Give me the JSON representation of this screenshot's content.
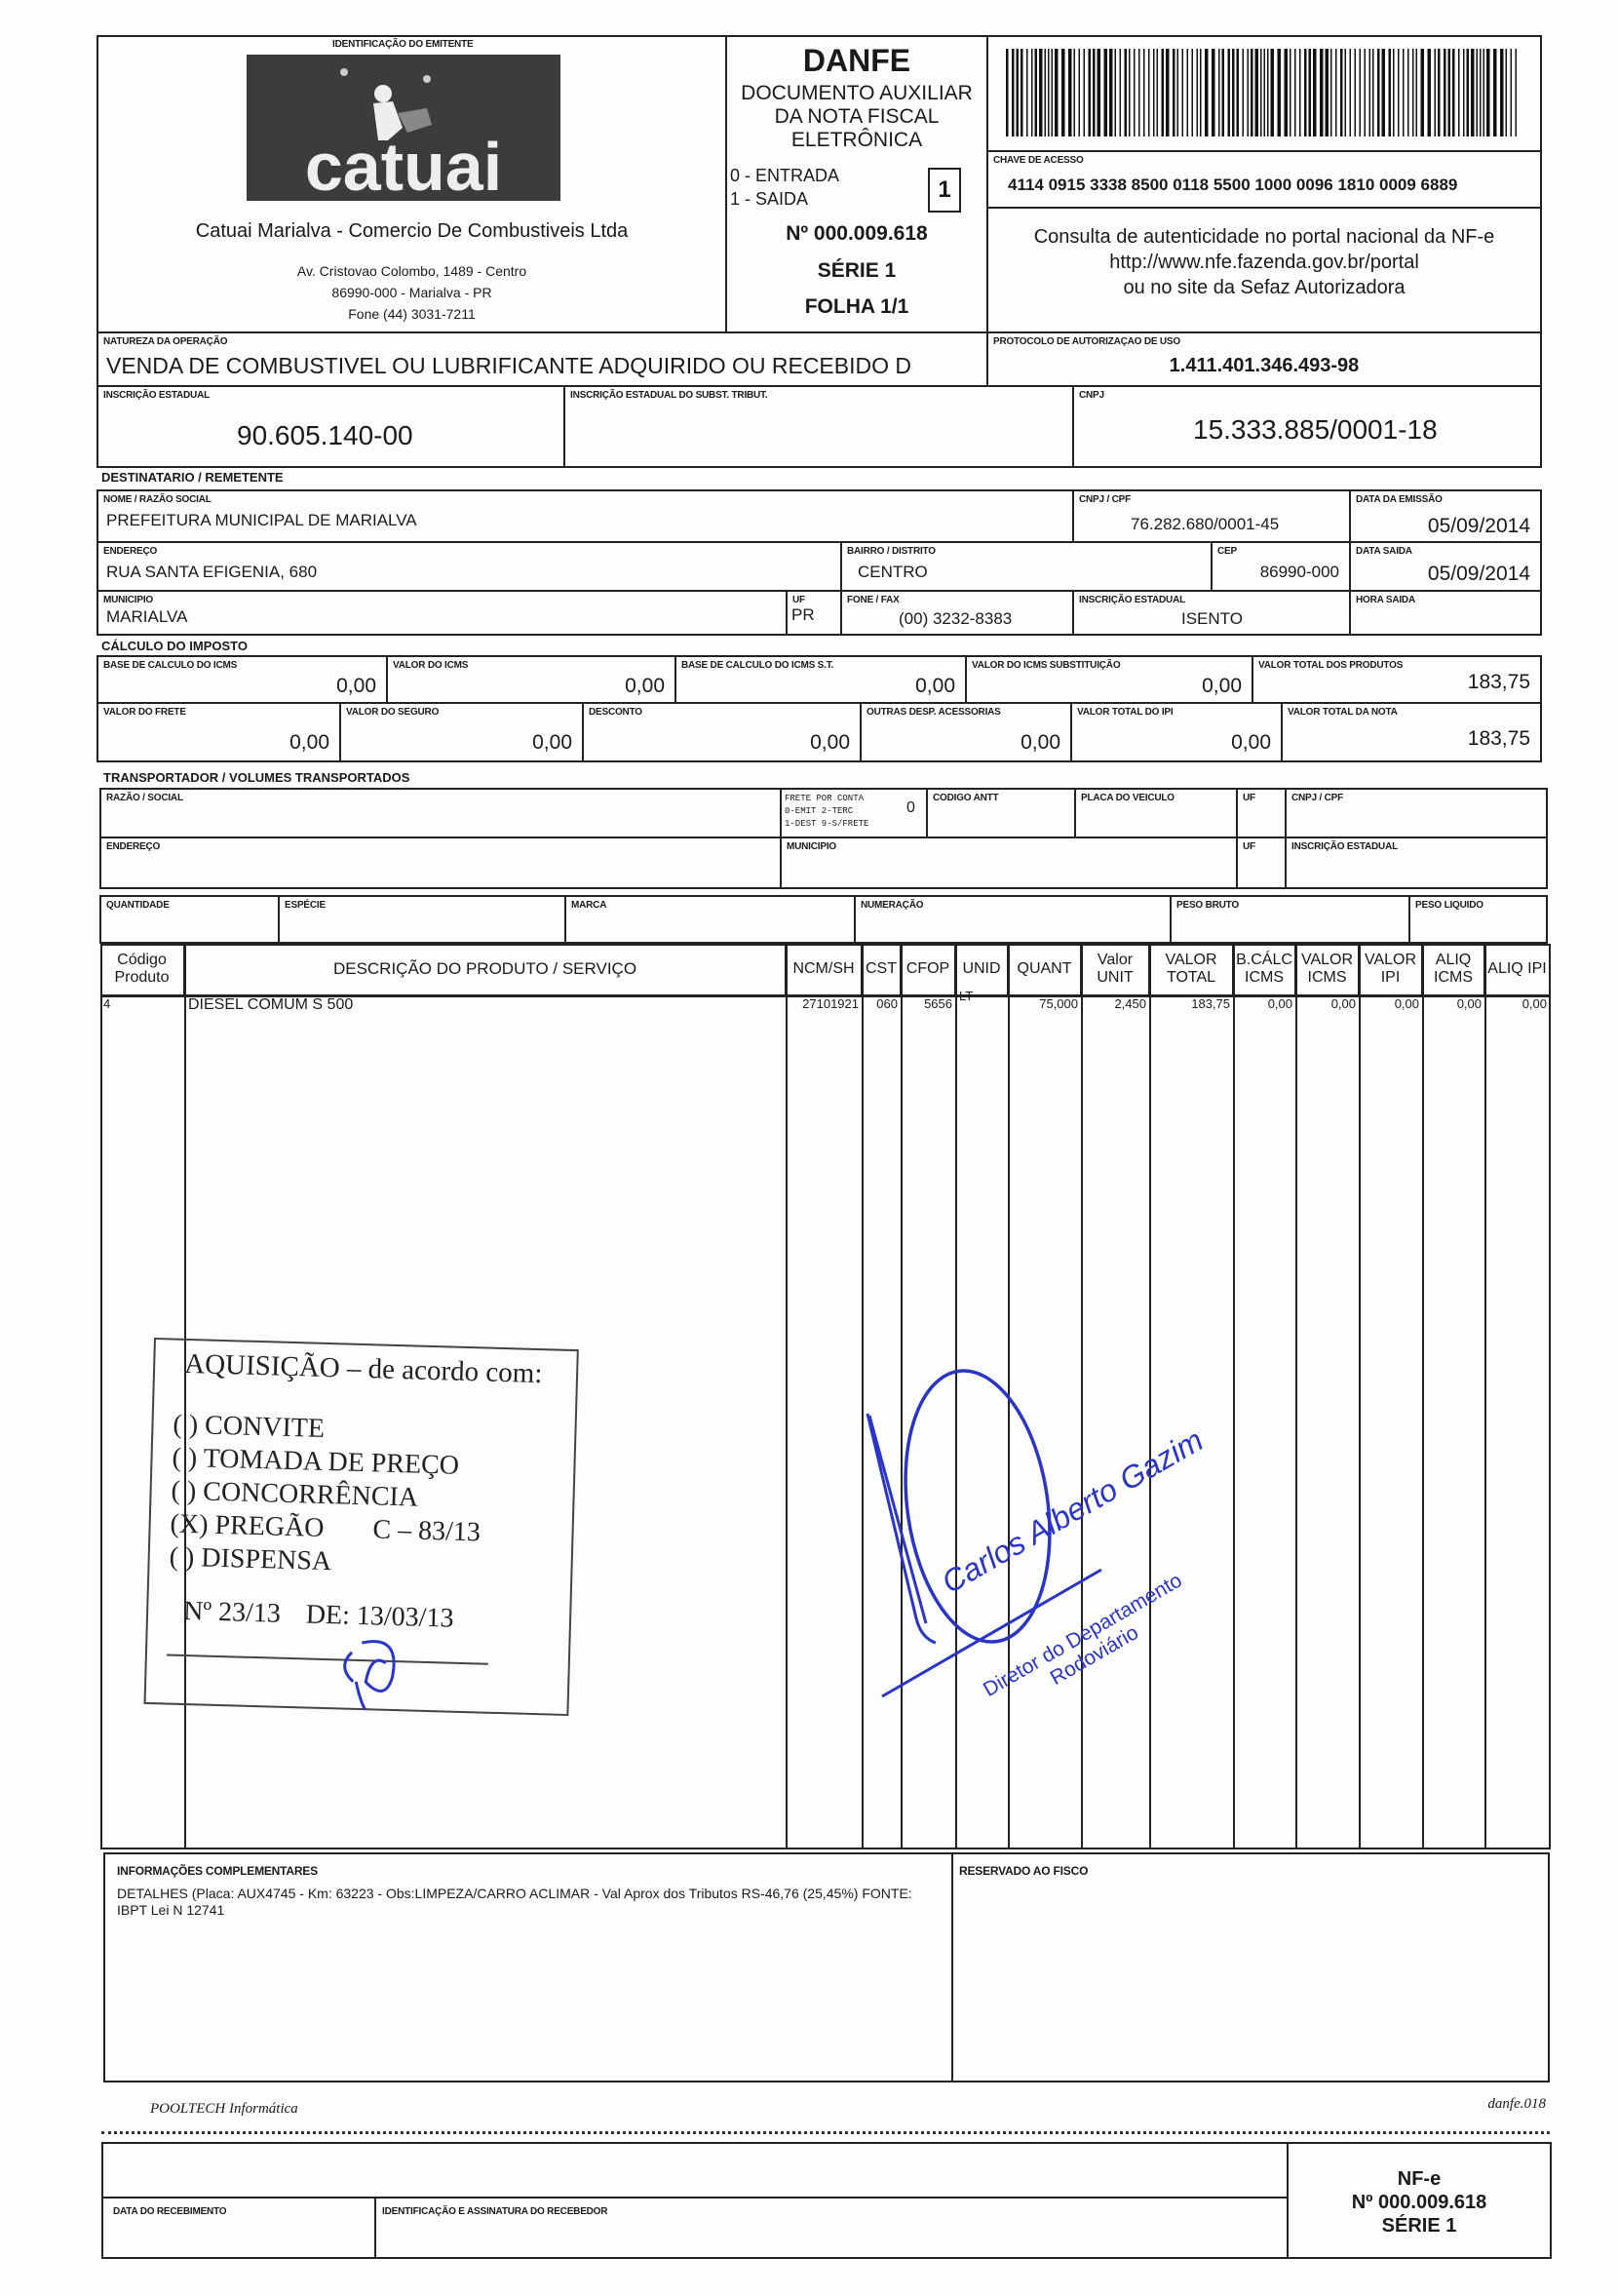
{
  "emitente": {
    "section_label": "IDENTIFICAÇÃO DO EMITENTE",
    "logo_text": "catuai",
    "name": "Catuai Marialva - Comercio De Combustiveis Ltda",
    "address_line1": "Av. Cristovao Colombo, 1489 - Centro",
    "address_line2": "86990-000 - Marialva - PR",
    "phone": "Fone (44) 3031-7211"
  },
  "danfe": {
    "title": "DANFE",
    "subtitle_1": "DOCUMENTO AUXILIAR",
    "subtitle_2": "DA NOTA FISCAL",
    "subtitle_3": "ELETRÔNICA",
    "entrada": "0 - ENTRADA",
    "saida": "1 - SAIDA",
    "tipo": "1",
    "numero": "Nº 000.009.618",
    "serie": "SÉRIE 1",
    "folha": "FOLHA 1/1"
  },
  "chave": {
    "label": "CHAVE DE ACESSO",
    "value": "4114 0915 3338 8500 0118 5500 1000 0096 1810 0009 6889",
    "consulta_1": "Consulta de autenticidade no portal nacional da NF-e",
    "consulta_2": "http://www.nfe.fazenda.gov.br/portal",
    "consulta_3": "ou no site da Sefaz Autorizadora"
  },
  "natureza": {
    "label": "NATUREZA DA OPERAÇÃO",
    "value": "VENDA DE COMBUSTIVEL OU LUBRIFICANTE ADQUIRIDO OU RECEBIDO D"
  },
  "protocolo": {
    "label": "PROTOCOLO DE AUTORIZAÇAO DE USO",
    "value": "1.411.401.346.493-98"
  },
  "inscricao": {
    "label": "INSCRIÇÃO ESTADUAL",
    "value": "90.605.140-00",
    "subst_label": "INSCRIÇÃO ESTADUAL DO SUBST. TRIBUT.",
    "cnpj_label": "CNPJ",
    "cnpj": "15.333.885/0001-18"
  },
  "destinatario": {
    "section_label": "DESTINATARIO / REMETENTE",
    "nome_label": "NOME / RAZÃO SOCIAL",
    "nome": "PREFEITURA MUNICIPAL DE MARIALVA",
    "cnpj_label": "CNPJ / CPF",
    "cnpj": "76.282.680/0001-45",
    "emissao_label": "DATA DA EMISSÃO",
    "emissao": "05/09/2014",
    "endereco_label": "ENDEREÇO",
    "endereco": "RUA SANTA EFIGENIA, 680",
    "bairro_label": "BAIRRO / DISTRITO",
    "bairro": "CENTRO",
    "cep_label": "CEP",
    "cep": "86990-000",
    "saida_label": "DATA SAIDA",
    "saida": "05/09/2014",
    "municipio_label": "MUNICIPIO",
    "municipio": "MARIALVA",
    "uf_label": "UF",
    "uf": "PR",
    "fone_label": "FONE / FAX",
    "fone": "(00) 3232-8383",
    "ie_label": "INSCRIÇÃO ESTADUAL",
    "ie": "ISENTO",
    "hora_label": "HORA SAIDA"
  },
  "imposto": {
    "section_label": "CÁLCULO DO IMPOSTO",
    "row1": [
      {
        "label": "BASE DE CALCULO DO ICMS",
        "value": "0,00"
      },
      {
        "label": "VALOR DO ICMS",
        "value": "0,00"
      },
      {
        "label": "BASE DE CALCULO DO ICMS S.T.",
        "value": "0,00"
      },
      {
        "label": "VALOR DO ICMS SUBSTITUIÇÃO",
        "value": "0,00"
      },
      {
        "label": "VALOR TOTAL DOS PRODUTOS",
        "value": "183,75"
      }
    ],
    "row2": [
      {
        "label": "VALOR DO FRETE",
        "value": "0,00"
      },
      {
        "label": "VALOR DO SEGURO",
        "value": "0,00"
      },
      {
        "label": "DESCONTO",
        "value": "0,00"
      },
      {
        "label": "OUTRAS DESP. ACESSORIAS",
        "value": "0,00"
      },
      {
        "label": "VALOR TOTAL DO IPI",
        "value": "0,00"
      },
      {
        "label": "VALOR TOTAL DA NOTA",
        "value": "183,75"
      }
    ]
  },
  "transportador": {
    "section_label": "TRANSPORTADOR / VOLUMES TRANSPORTADOS",
    "razao_label": "RAZÃO / SOCIAL",
    "frete_1": "FRETE POR CONTA",
    "frete_2": "0-EMIT 2-TERC",
    "frete_3": "1-DEST 9-S/FRETE",
    "frete_value": "0",
    "antt_label": "CODIGO ANTT",
    "placa_label": "PLACA DO VEICULO",
    "uf_label": "UF",
    "cnpj_label": "CNPJ / CPF",
    "endereco_label": "ENDEREÇO",
    "municipio_label": "MUNICIPIO",
    "uf2_label": "UF",
    "ie_label": "INSCRIÇÃO ESTADUAL",
    "quantidade_label": "QUANTIDADE",
    "especie_label": "ESPÉCIE",
    "marca_label": "MARCA",
    "numeracao_label": "NUMERAÇÃO",
    "peso_bruto_label": "PESO BRUTO",
    "peso_liquido_label": "PESO LIQUIDO"
  },
  "produtos": {
    "headers": [
      "Código Produto",
      "DESCRIÇÃO DO PRODUTO / SERVIÇO",
      "NCM/SH",
      "CST",
      "CFOP",
      "UNID",
      "QUANT",
      "Valor UNIT",
      "VALOR TOTAL",
      "B.CÁLC ICMS",
      "VALOR ICMS",
      "VALOR IPI",
      "ALIQ ICMS",
      "ALIQ IPI"
    ],
    "rows": [
      [
        "4",
        "DIESEL COMUM S 500",
        "27101921",
        "060",
        "5656",
        "LT",
        "75,000",
        "2,450",
        "183,75",
        "0,00",
        "0,00",
        "0,00",
        "0,00",
        "0,00"
      ]
    ]
  },
  "stamp": {
    "title": "AQUISIÇÃO – de acordo com:",
    "opt1": "( ) CONVITE",
    "opt2": "( ) TOMADA DE PREÇO",
    "opt3": "( ) CONCORRÊNCIA",
    "opt4": "(X) PREGÃO",
    "opt4_ref": "C – 83/13",
    "opt5": "( ) DISPENSA",
    "numero": "Nº 23/13",
    "data": "DE: 13/03/13"
  },
  "signature_stamp": {
    "name": "Carlos Alberto Gazim",
    "role_1": "Diretor do Departamento",
    "role_2": "Rodoviário",
    "ink_color": "#2a35c8"
  },
  "info": {
    "label": "INFORMAÇÕES COMPLEMENTARES",
    "text": "DETALHES (Placa: AUX4745 - Km: 63223 - Obs:LIMPEZA/CARRO ACLIMAR - Val Aprox dos Tributos RS-46,76 (25,45%) FONTE: IBPT Lei N 12741",
    "fisco_label": "RESERVADO AO FISCO"
  },
  "footer": {
    "software": "POOLTECH Informática",
    "form": "danfe.018"
  },
  "canhoto": {
    "data_label": "DATA DO RECEBIMENTO",
    "assinatura_label": "IDENTIFICAÇÃO E ASSINATURA DO RECEBEDOR",
    "nfe": "NF-e",
    "numero": "Nº 000.009.618",
    "serie": "SÉRIE 1"
  }
}
